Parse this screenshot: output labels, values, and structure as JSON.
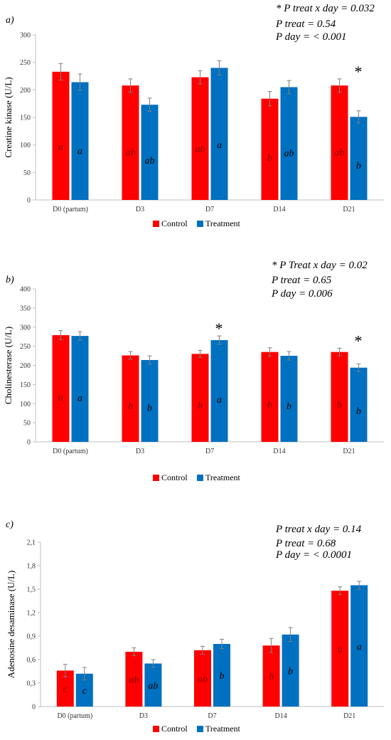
{
  "colors": {
    "control": "#ff0000",
    "treatment": "#0070c0",
    "axis": "#bfbfbf",
    "error": "#7f7f7f"
  },
  "legend": {
    "control": "Control",
    "treatment": "Treatment"
  },
  "chart_data": [
    {
      "type": "bar",
      "panel_label": "a)",
      "title": "",
      "xlabel": "",
      "ylabel": "Creatine kinase (U/L)",
      "ylim": [
        0,
        300
      ],
      "yticks": [
        "0",
        "50",
        "100",
        "150",
        "200",
        "250",
        "300"
      ],
      "categories": [
        "D0 (partum)",
        "D3",
        "D7",
        "D14",
        "D21"
      ],
      "series": [
        {
          "name": "Control",
          "values": [
            233,
            208,
            223,
            184,
            208
          ],
          "errors": [
            15,
            12,
            12,
            13,
            12
          ],
          "letters": [
            "a",
            "ab",
            "ab",
            "b",
            "ab"
          ]
        },
        {
          "name": "Treatment",
          "values": [
            214,
            173,
            240,
            205,
            151
          ],
          "errors": [
            15,
            12,
            13,
            12,
            11
          ],
          "letters": [
            "a",
            "ab",
            "a",
            "ab",
            "b"
          ]
        }
      ],
      "asterisks": [
        "D21"
      ],
      "stats": [
        "* P treat x day = 0.032",
        "P treat = 0.54",
        "P day =  < 0.001"
      ]
    },
    {
      "type": "bar",
      "panel_label": "b)",
      "title": "",
      "xlabel": "",
      "ylabel": "Cholinesterase (U/L)",
      "ylim": [
        0,
        400
      ],
      "yticks": [
        "0",
        "50",
        "100",
        "150",
        "200",
        "250",
        "300",
        "350",
        "400"
      ],
      "categories": [
        "D0 (partum)",
        "D3",
        "D7",
        "D14",
        "D21"
      ],
      "series": [
        {
          "name": "Control",
          "values": [
            279,
            226,
            230,
            235,
            235
          ],
          "errors": [
            12,
            10,
            9,
            11,
            10
          ],
          "letters": [
            "a",
            "b",
            "b",
            "b",
            "b"
          ]
        },
        {
          "name": "Treatment",
          "values": [
            277,
            214,
            266,
            225,
            194
          ],
          "errors": [
            11,
            11,
            11,
            11,
            10
          ],
          "letters": [
            "a",
            "b",
            "a",
            "b",
            "b"
          ]
        }
      ],
      "asterisks": [
        "D7",
        "D21"
      ],
      "stats": [
        "* P Treat x day = 0.02",
        "P treat = 0.65",
        "P day = 0.006"
      ]
    },
    {
      "type": "bar",
      "panel_label": "c)",
      "title": "",
      "xlabel": "",
      "ylabel": "Adenosine desaminase (U/L)",
      "ylim": [
        0,
        2.1
      ],
      "yticks": [
        "0",
        "0,3",
        "0,6",
        "0,9",
        "1,2",
        "1,5",
        "1,8",
        "2,1"
      ],
      "categories": [
        "D0 (partum)",
        "D3",
        "D7",
        "D14",
        "D21"
      ],
      "series": [
        {
          "name": "Control",
          "values": [
            0.46,
            0.7,
            0.72,
            0.78,
            1.48
          ],
          "errors": [
            0.08,
            0.05,
            0.05,
            0.09,
            0.05
          ],
          "letters": [
            "c",
            "ab",
            "ab",
            "b",
            "a"
          ]
        },
        {
          "name": "Treatment",
          "values": [
            0.42,
            0.55,
            0.8,
            0.92,
            1.55
          ],
          "errors": [
            0.08,
            0.05,
            0.06,
            0.09,
            0.05
          ],
          "letters": [
            "c",
            "ab",
            "b",
            "b",
            "a"
          ]
        }
      ],
      "asterisks": [],
      "stats": [
        "P treat x day = 0.14",
        "P treat = 0.68",
        "P day =  < 0.0001"
      ]
    }
  ]
}
